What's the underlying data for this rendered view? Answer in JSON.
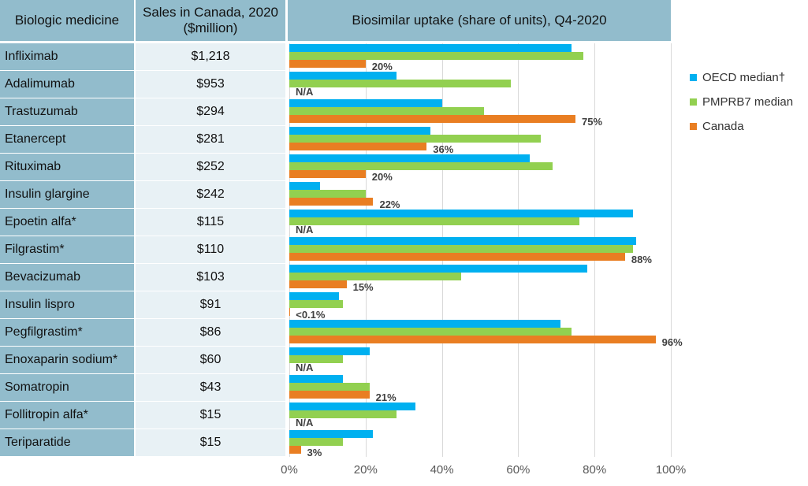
{
  "table": {
    "col1_header": "Biologic medicine",
    "col2_header": "Sales in Canada, 2020 ($million)",
    "rows": [
      {
        "name": "Infliximab",
        "sales": "$1,218"
      },
      {
        "name": "Adalimumab",
        "sales": "$953"
      },
      {
        "name": "Trastuzumab",
        "sales": "$294"
      },
      {
        "name": "Etanercept",
        "sales": "$281"
      },
      {
        "name": "Rituximab",
        "sales": "$252"
      },
      {
        "name": "Insulin glargine",
        "sales": "$242"
      },
      {
        "name": "Epoetin alfa*",
        "sales": "$115"
      },
      {
        "name": "Filgrastim*",
        "sales": "$110"
      },
      {
        "name": "Bevacizumab",
        "sales": "$103"
      },
      {
        "name": "Insulin lispro",
        "sales": "$91"
      },
      {
        "name": "Pegfilgrastim*",
        "sales": "$86"
      },
      {
        "name": "Enoxaparin sodium*",
        "sales": "$60"
      },
      {
        "name": "Somatropin",
        "sales": "$43"
      },
      {
        "name": "Follitropin alfa*",
        "sales": "$15"
      },
      {
        "name": "Teriparatide",
        "sales": "$15"
      }
    ]
  },
  "chart_data": {
    "type": "bar",
    "orientation": "horizontal",
    "title": "Biosimilar uptake (share of units), Q4-2020",
    "categories": [
      "Infliximab",
      "Adalimumab",
      "Trastuzumab",
      "Etanercept",
      "Rituximab",
      "Insulin glargine",
      "Epoetin alfa*",
      "Filgrastim*",
      "Bevacizumab",
      "Insulin lispro",
      "Pegfilgrastim*",
      "Enoxaparin sodium*",
      "Somatropin",
      "Follitropin alfa*",
      "Teriparatide"
    ],
    "series": [
      {
        "name": "OECD median†",
        "color": "#00b0f0",
        "values": [
          74,
          28,
          40,
          37,
          63,
          8,
          90,
          91,
          78,
          13,
          71,
          21,
          14,
          33,
          22
        ]
      },
      {
        "name": "PMPRB7 median",
        "color": "#92d050",
        "values": [
          77,
          58,
          51,
          66,
          69,
          20,
          76,
          90,
          45,
          14,
          74,
          14,
          21,
          28,
          14
        ]
      },
      {
        "name": "Canada",
        "color": "#e97e22",
        "values": [
          20,
          null,
          75,
          36,
          20,
          22,
          null,
          88,
          15,
          0.05,
          96,
          null,
          21,
          null,
          3
        ],
        "labels": [
          "20%",
          "N/A",
          "75%",
          "36%",
          "20%",
          "22%",
          "N/A",
          "88%",
          "15%",
          "<0.1%",
          "96%",
          "N/A",
          "21%",
          "N/A",
          "3%"
        ]
      }
    ],
    "xlim": [
      0,
      100
    ],
    "x_ticks": [
      "0%",
      "20%",
      "40%",
      "60%",
      "80%",
      "100%"
    ],
    "grid": true,
    "legend_position": "right"
  }
}
